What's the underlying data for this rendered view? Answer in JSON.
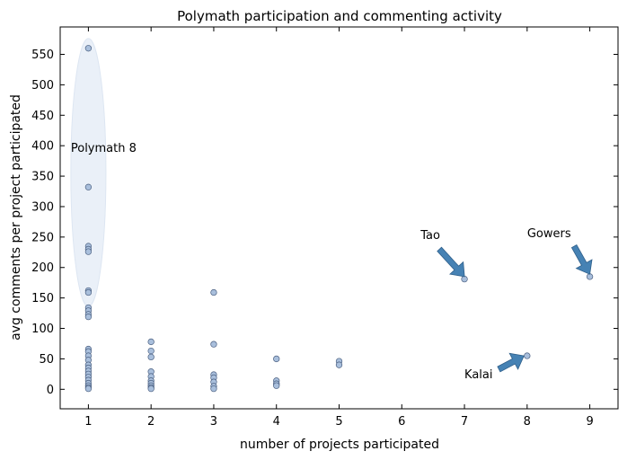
{
  "chart_data": {
    "type": "scatter",
    "title": "Polymath participation and commenting activity",
    "xlabel": "number of projects participated",
    "ylabel": "avg comments per project participated",
    "xlim": [
      0.55,
      9.45
    ],
    "ylim": [
      -32,
      595
    ],
    "xticks": [
      1,
      2,
      3,
      4,
      5,
      6,
      7,
      8,
      9
    ],
    "yticks": [
      0,
      50,
      100,
      150,
      200,
      250,
      300,
      350,
      400,
      450,
      500,
      550
    ],
    "grid": false,
    "colors": {
      "marker_fill": "#a9bfdc",
      "marker_edge": "#4a5f80",
      "arrow": "#4682b4",
      "ellipse": "#eaf0f8"
    },
    "points": [
      {
        "x": 1,
        "y": 560
      },
      {
        "x": 1,
        "y": 332
      },
      {
        "x": 1,
        "y": 235
      },
      {
        "x": 1,
        "y": 230
      },
      {
        "x": 1,
        "y": 226
      },
      {
        "x": 1,
        "y": 162
      },
      {
        "x": 1,
        "y": 159
      },
      {
        "x": 1,
        "y": 134
      },
      {
        "x": 1,
        "y": 129
      },
      {
        "x": 1,
        "y": 123
      },
      {
        "x": 1,
        "y": 119
      },
      {
        "x": 1,
        "y": 66
      },
      {
        "x": 1,
        "y": 62
      },
      {
        "x": 1,
        "y": 55
      },
      {
        "x": 1,
        "y": 48
      },
      {
        "x": 1,
        "y": 40
      },
      {
        "x": 1,
        "y": 35
      },
      {
        "x": 1,
        "y": 30
      },
      {
        "x": 1,
        "y": 25
      },
      {
        "x": 1,
        "y": 20
      },
      {
        "x": 1,
        "y": 15
      },
      {
        "x": 1,
        "y": 10
      },
      {
        "x": 1,
        "y": 6
      },
      {
        "x": 1,
        "y": 3
      },
      {
        "x": 1,
        "y": 1
      },
      {
        "x": 2,
        "y": 78
      },
      {
        "x": 2,
        "y": 63
      },
      {
        "x": 2,
        "y": 53
      },
      {
        "x": 2,
        "y": 29
      },
      {
        "x": 2,
        "y": 21
      },
      {
        "x": 2,
        "y": 14
      },
      {
        "x": 2,
        "y": 10
      },
      {
        "x": 2,
        "y": 6
      },
      {
        "x": 2,
        "y": 3
      },
      {
        "x": 2,
        "y": 1
      },
      {
        "x": 3,
        "y": 159
      },
      {
        "x": 3,
        "y": 74
      },
      {
        "x": 3,
        "y": 24
      },
      {
        "x": 3,
        "y": 19
      },
      {
        "x": 3,
        "y": 12
      },
      {
        "x": 3,
        "y": 5
      },
      {
        "x": 3,
        "y": 1
      },
      {
        "x": 4,
        "y": 50
      },
      {
        "x": 4,
        "y": 14
      },
      {
        "x": 4,
        "y": 9
      },
      {
        "x": 4,
        "y": 6
      },
      {
        "x": 5,
        "y": 46
      },
      {
        "x": 5,
        "y": 40
      },
      {
        "x": 7,
        "y": 181
      },
      {
        "x": 8,
        "y": 55
      },
      {
        "x": 9,
        "y": 185
      }
    ],
    "highlight_ellipse": {
      "cx": 1,
      "cy": 356,
      "rx": 0.28,
      "ry": 220
    },
    "annotations": [
      {
        "text": "Polymath 8",
        "x": 0.72,
        "y": 390
      },
      {
        "text": "Tao",
        "x": 6.3,
        "y": 247,
        "arrow_to": [
          7,
          185
        ],
        "arrow_from": [
          6.6,
          230
        ]
      },
      {
        "text": "Gowers",
        "x": 8.0,
        "y": 250,
        "arrow_to": [
          9,
          189
        ],
        "arrow_from": [
          8.75,
          235
        ]
      },
      {
        "text": "Kalai",
        "x": 7.0,
        "y": 18,
        "arrow_to": [
          7.95,
          55
        ],
        "arrow_from": [
          7.55,
          33
        ]
      }
    ]
  }
}
